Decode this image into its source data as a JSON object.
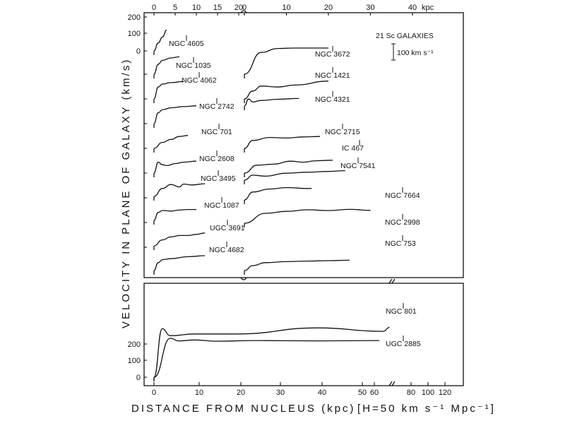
{
  "chart_data": {
    "type": "line",
    "title": "",
    "ylabel": "VELOCITY IN PLANE OF GALAXY (km/s)",
    "xlabel": "DISTANCE FROM NUCLEUS (kpc)",
    "hubble_note": "[H=50 km s⁻¹ Mpc⁻¹]",
    "legend_title": "21 Sc GALAXIES",
    "scale_bar_label": "100 km s⁻¹",
    "top_axis_left_ticks": [
      "0",
      "5",
      "10",
      "15",
      "20"
    ],
    "top_axis_right_ticks": [
      "0",
      "10",
      "20",
      "30",
      "40"
    ],
    "top_axis_unit": "kpc",
    "left_axis_top_ticks": [
      "200",
      "100",
      "0"
    ],
    "left_axis_bottom_ticks": [
      "200",
      "100",
      "0"
    ],
    "bottom_axis_ticks": [
      "0",
      "10",
      "20",
      "30",
      "40",
      "50",
      "60",
      "80",
      "100",
      "120"
    ],
    "series": [
      {
        "name": "NGC 4605",
        "x": [
          0,
          1,
          2,
          3
        ],
        "y": [
          0,
          40,
          70,
          105
        ]
      },
      {
        "name": "NGC 1035",
        "x": [
          0,
          1,
          2,
          4,
          6
        ],
        "y": [
          0,
          50,
          70,
          82,
          88
        ]
      },
      {
        "name": "NGC 4062",
        "x": [
          0,
          1,
          2,
          4,
          7
        ],
        "y": [
          0,
          60,
          75,
          82,
          88
        ]
      },
      {
        "name": "NGC 2742",
        "x": [
          0,
          1,
          2,
          4,
          7,
          10
        ],
        "y": [
          0,
          55,
          70,
          80,
          86,
          90
        ]
      },
      {
        "name": "NGC 701",
        "x": [
          0,
          2,
          4,
          6,
          8
        ],
        "y": [
          0,
          30,
          45,
          60,
          65
        ]
      },
      {
        "name": "NGC 2608",
        "x": [
          0,
          1,
          2,
          3,
          5,
          7,
          10
        ],
        "y": [
          0,
          55,
          42,
          38,
          48,
          55,
          60
        ]
      },
      {
        "name": "NGC 3495",
        "x": [
          0,
          2,
          4,
          6,
          7,
          9,
          12
        ],
        "y": [
          0,
          40,
          60,
          48,
          62,
          58,
          64
        ]
      },
      {
        "name": "NGC 1087",
        "x": [
          0,
          1,
          2,
          4,
          6,
          8,
          10
        ],
        "y": [
          0,
          40,
          50,
          47,
          52,
          55,
          55
        ]
      },
      {
        "name": "UGC 3691",
        "x": [
          0,
          2,
          4,
          6,
          8,
          10,
          12
        ],
        "y": [
          0,
          30,
          45,
          52,
          52,
          58,
          65
        ]
      },
      {
        "name": "NGC 4682",
        "x": [
          0,
          1,
          2,
          4,
          8,
          12
        ],
        "y": [
          0,
          40,
          55,
          60,
          70,
          75
        ]
      },
      {
        "name": "NGC 3672",
        "x": [
          0,
          4,
          8,
          12,
          16,
          20
        ],
        "y": [
          0,
          110,
          130,
          132,
          132,
          132
        ]
      },
      {
        "name": "NGC 1421",
        "x": [
          0,
          2,
          4,
          8,
          12,
          20
        ],
        "y": [
          0,
          40,
          65,
          60,
          70,
          90
        ]
      },
      {
        "name": "NGC 4321",
        "x": [
          0,
          1,
          2,
          4,
          8,
          13
        ],
        "y": [
          0,
          35,
          20,
          28,
          34,
          38
        ]
      },
      {
        "name": "NGC 2715",
        "x": [
          0,
          2,
          6,
          10,
          14,
          18
        ],
        "y": [
          0,
          40,
          55,
          52,
          58,
          60
        ]
      },
      {
        "name": "IC 467",
        "x": [
          0,
          3,
          7,
          11,
          14,
          17,
          21
        ],
        "y": [
          0,
          40,
          45,
          60,
          55,
          62,
          65
        ]
      },
      {
        "name": "NGC 7541",
        "x": [
          0,
          2,
          5,
          10,
          15,
          20,
          24
        ],
        "y": [
          0,
          25,
          20,
          35,
          40,
          44,
          48
        ]
      },
      {
        "name": "NGC 7664",
        "x": [
          0,
          2,
          6,
          10,
          15,
          16
        ],
        "y": [
          0,
          40,
          55,
          62,
          58,
          58
        ]
      },
      {
        "name": "NGC 2998",
        "x": [
          0,
          5,
          10,
          15,
          20,
          25,
          30
        ],
        "y": [
          0,
          50,
          60,
          68,
          64,
          70,
          65
        ]
      },
      {
        "name": "NGC 753",
        "x": [
          0,
          2,
          5,
          10,
          15,
          20,
          25
        ],
        "y": [
          0,
          25,
          40,
          45,
          48,
          50,
          52
        ]
      },
      {
        "name": "NGC 801",
        "x": [
          0,
          4,
          6,
          10,
          15,
          25,
          40,
          55
        ],
        "y": [
          0,
          225,
          210,
          215,
          208,
          212,
          210,
          212
        ]
      },
      {
        "name": "UGC 2885",
        "x": [
          0,
          2,
          4,
          10,
          20,
          40,
          56,
          57.5
        ],
        "y": [
          0,
          280,
          240,
          250,
          250,
          285,
          265,
          288
        ]
      }
    ],
    "grid": false
  }
}
